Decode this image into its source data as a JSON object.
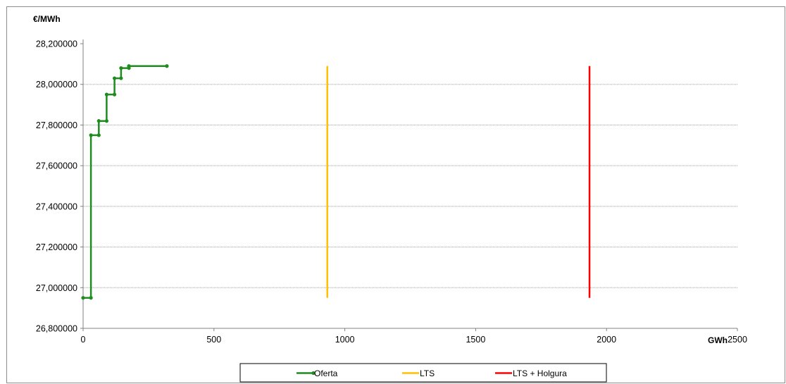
{
  "chart_data": {
    "type": "line",
    "title": "",
    "ylabel": "€/MWh",
    "xlabel": "GWh",
    "xlim": [
      0,
      2500
    ],
    "ylim": [
      26.8,
      28.2
    ],
    "x_ticks": [
      0,
      500,
      1000,
      1500,
      2000,
      2500
    ],
    "x_tick_labels": [
      "0",
      "500",
      "1000",
      "1500",
      "2000",
      "2500"
    ],
    "y_ticks": [
      26.8,
      27.0,
      27.2,
      27.4,
      27.6,
      27.8,
      28.0,
      28.2
    ],
    "y_tick_labels": [
      "26,800000",
      "27,000000",
      "27,200000",
      "27,400000",
      "27,600000",
      "27,800000",
      "28,000000",
      "28,200000"
    ],
    "grid": "horizontal",
    "legend_position": "bottom",
    "series": [
      {
        "name": "Oferta",
        "color": "#1e8c1e",
        "markers": true,
        "points": [
          [
            0,
            26.95
          ],
          [
            30,
            26.95
          ],
          [
            30,
            27.75
          ],
          [
            60,
            27.75
          ],
          [
            60,
            27.82
          ],
          [
            90,
            27.82
          ],
          [
            90,
            27.95
          ],
          [
            120,
            27.95
          ],
          [
            120,
            28.03
          ],
          [
            145,
            28.03
          ],
          [
            145,
            28.08
          ],
          [
            175,
            28.08
          ],
          [
            175,
            28.09
          ],
          [
            320,
            28.09
          ]
        ]
      },
      {
        "name": "LTS",
        "color": "#ffc000",
        "markers": false,
        "points": [
          [
            933,
            26.95
          ],
          [
            933,
            28.09
          ]
        ]
      },
      {
        "name": "LTS + Holgura",
        "color": "#ff0000",
        "markers": false,
        "points": [
          [
            1935,
            26.95
          ],
          [
            1935,
            28.09
          ]
        ]
      }
    ]
  }
}
